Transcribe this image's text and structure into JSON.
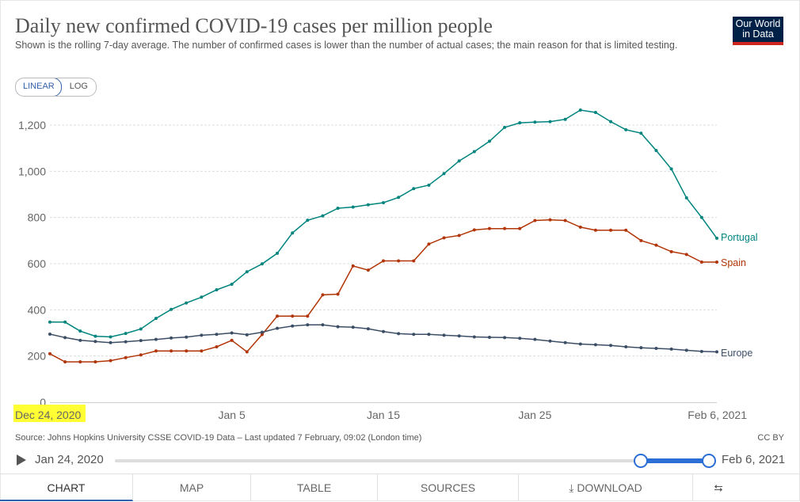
{
  "header": {
    "title": "Daily new confirmed COVID-19 cases per million people",
    "subtitle": "Shown is the rolling 7-day average. The number of confirmed cases is lower than the number of actual cases; the main reason for that is limited testing.",
    "logo_line1": "Our World",
    "logo_line2": "in Data"
  },
  "scale": {
    "linear_label": "LINEAR",
    "log_label": "LOG",
    "selected": "LINEAR"
  },
  "colors": {
    "Portugal": "#00847e",
    "Spain": "#b13507",
    "Europe": "#3c4e66",
    "highlight": "#ffff33",
    "accent": "#3360a9"
  },
  "chart_data": {
    "type": "line",
    "title": "Daily new confirmed COVID-19 cases per million people",
    "xlabel": "",
    "ylabel": "",
    "x": [
      "Dec 24",
      "Dec 25",
      "Dec 26",
      "Dec 27",
      "Dec 28",
      "Dec 29",
      "Dec 30",
      "Dec 31",
      "Jan 1",
      "Jan 2",
      "Jan 3",
      "Jan 4",
      "Jan 5",
      "Jan 6",
      "Jan 7",
      "Jan 8",
      "Jan 9",
      "Jan 10",
      "Jan 11",
      "Jan 12",
      "Jan 13",
      "Jan 14",
      "Jan 15",
      "Jan 16",
      "Jan 17",
      "Jan 18",
      "Jan 19",
      "Jan 20",
      "Jan 21",
      "Jan 22",
      "Jan 23",
      "Jan 24",
      "Jan 25",
      "Jan 26",
      "Jan 27",
      "Jan 28",
      "Jan 29",
      "Jan 30",
      "Jan 31",
      "Feb 1",
      "Feb 2",
      "Feb 3",
      "Feb 4",
      "Feb 5",
      "Feb 6"
    ],
    "x_tick_labels": [
      "Dec 24, 2020",
      "Jan 5",
      "Jan 15",
      "Jan 25",
      "Feb 6, 2021"
    ],
    "x_tick_index": [
      0,
      12,
      22,
      32,
      44
    ],
    "y_ticks": [
      "0",
      "200",
      "400",
      "600",
      "800",
      "1,000",
      "1,200"
    ],
    "y_tick_values": [
      0,
      200,
      400,
      600,
      800,
      1000,
      1200
    ],
    "ylim": [
      0,
      1200
    ],
    "grid": "horizontal dashed",
    "legend": "end-of-line labels",
    "series": [
      {
        "name": "Portugal",
        "values": [
          347,
          347,
          308,
          286,
          283,
          298,
          317,
          363,
          402,
          430,
          455,
          487,
          511,
          565,
          599,
          645,
          733,
          788,
          807,
          840,
          845,
          855,
          864,
          887,
          925,
          940,
          990,
          1045,
          1085,
          1130,
          1190,
          1210,
          1213,
          1215,
          1225,
          1265,
          1255,
          1215,
          1180,
          1165,
          1090,
          1010,
          885,
          800,
          710
        ]
      },
      {
        "name": "Spain",
        "values": [
          210,
          175,
          175,
          175,
          180,
          193,
          205,
          222,
          222,
          222,
          222,
          240,
          268,
          218,
          293,
          373,
          373,
          373,
          465,
          468,
          590,
          572,
          612,
          612,
          612,
          685,
          712,
          722,
          746,
          752,
          752,
          752,
          787,
          790,
          787,
          758,
          745,
          745,
          745,
          700,
          680,
          652,
          640,
          607,
          607
        ]
      },
      {
        "name": "Europe",
        "values": [
          295,
          280,
          268,
          263,
          258,
          262,
          267,
          272,
          278,
          282,
          290,
          294,
          300,
          292,
          303,
          320,
          330,
          335,
          335,
          327,
          325,
          318,
          306,
          297,
          294,
          294,
          290,
          287,
          283,
          281,
          280,
          277,
          272,
          265,
          258,
          252,
          249,
          246,
          240,
          236,
          233,
          230,
          225,
          220,
          218
        ]
      }
    ]
  },
  "footer": {
    "source": "Source: Johns Hopkins University CSSE COVID-19 Data – Last updated 7 February, 09:02 (London time)",
    "license": "CC BY"
  },
  "timeline": {
    "start_label": "Jan 24, 2020",
    "end_label": "Feb 6, 2021",
    "selection_start_fraction": 0.885,
    "selection_end_fraction": 1.0
  },
  "tabs": [
    {
      "label": "CHART",
      "active": true
    },
    {
      "label": "MAP"
    },
    {
      "label": "TABLE"
    },
    {
      "label": "SOURCES"
    },
    {
      "label": "DOWNLOAD"
    }
  ]
}
